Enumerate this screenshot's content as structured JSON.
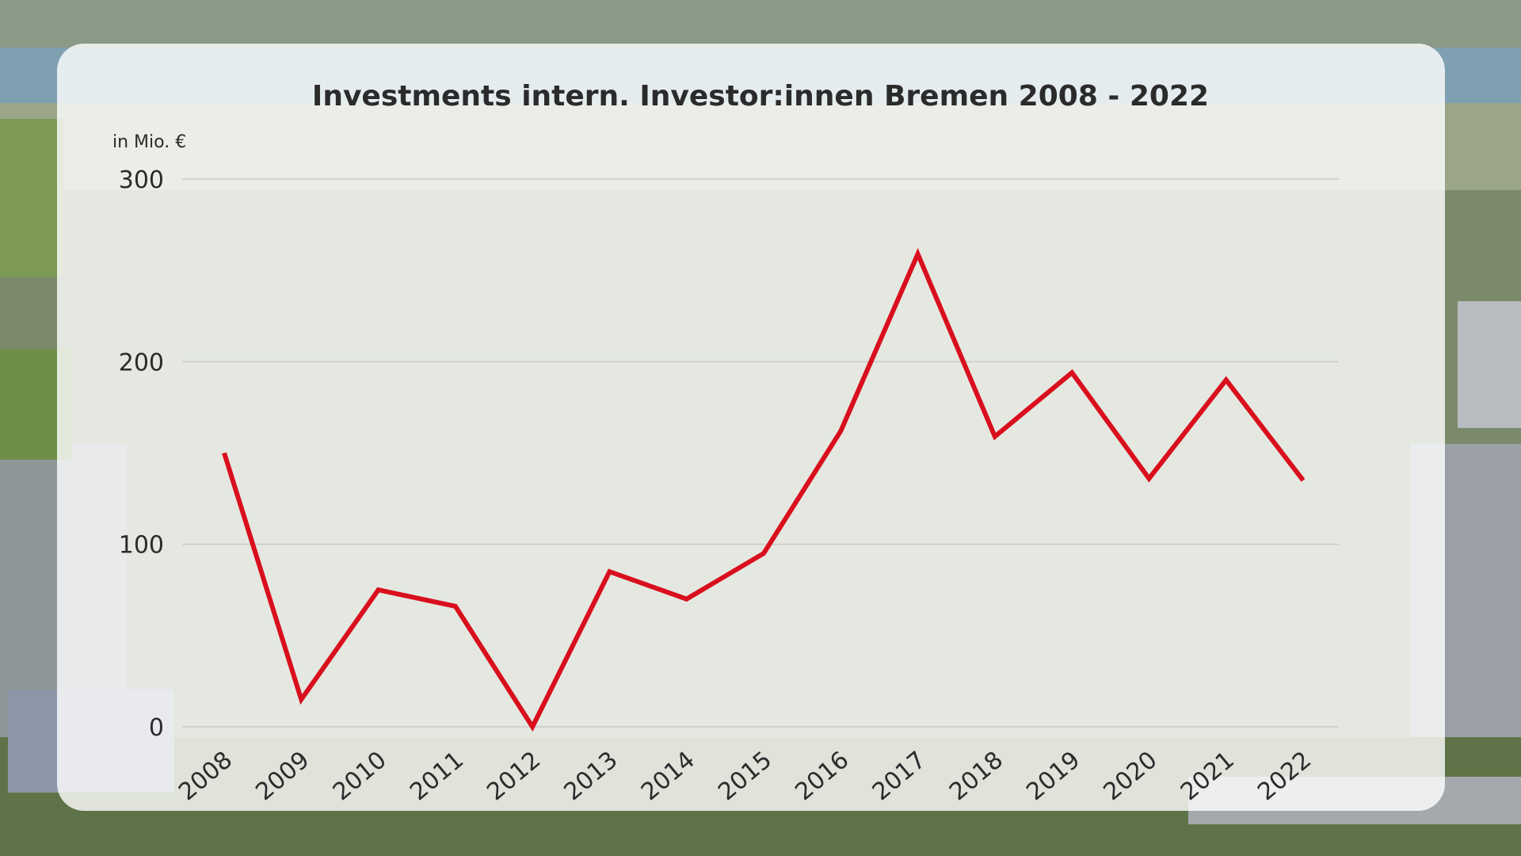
{
  "background": {
    "description_icon": "aerial-industrial-area-photo"
  },
  "colors": {
    "line": "#d90f1d",
    "grid": "#c9c9c9",
    "text": "#2b2b2b",
    "panel": "#ffffff"
  },
  "chart_data": {
    "type": "line",
    "title": "Investments intern. Investor:innen Bremen 2008 - 2022",
    "unit_label": "in Mio. €",
    "xlabel": "",
    "ylabel": "",
    "ylim": [
      0,
      300
    ],
    "yticks": [
      0,
      100,
      200,
      300
    ],
    "grid": true,
    "categories": [
      "2008",
      "2009",
      "2010",
      "2011",
      "2012",
      "2013",
      "2014",
      "2015",
      "2016",
      "2017",
      "2018",
      "2019",
      "2020",
      "2021",
      "2022"
    ],
    "values": [
      150,
      15,
      75,
      66,
      0,
      85,
      70,
      95,
      162,
      259,
      159,
      194,
      136,
      190,
      135
    ]
  }
}
